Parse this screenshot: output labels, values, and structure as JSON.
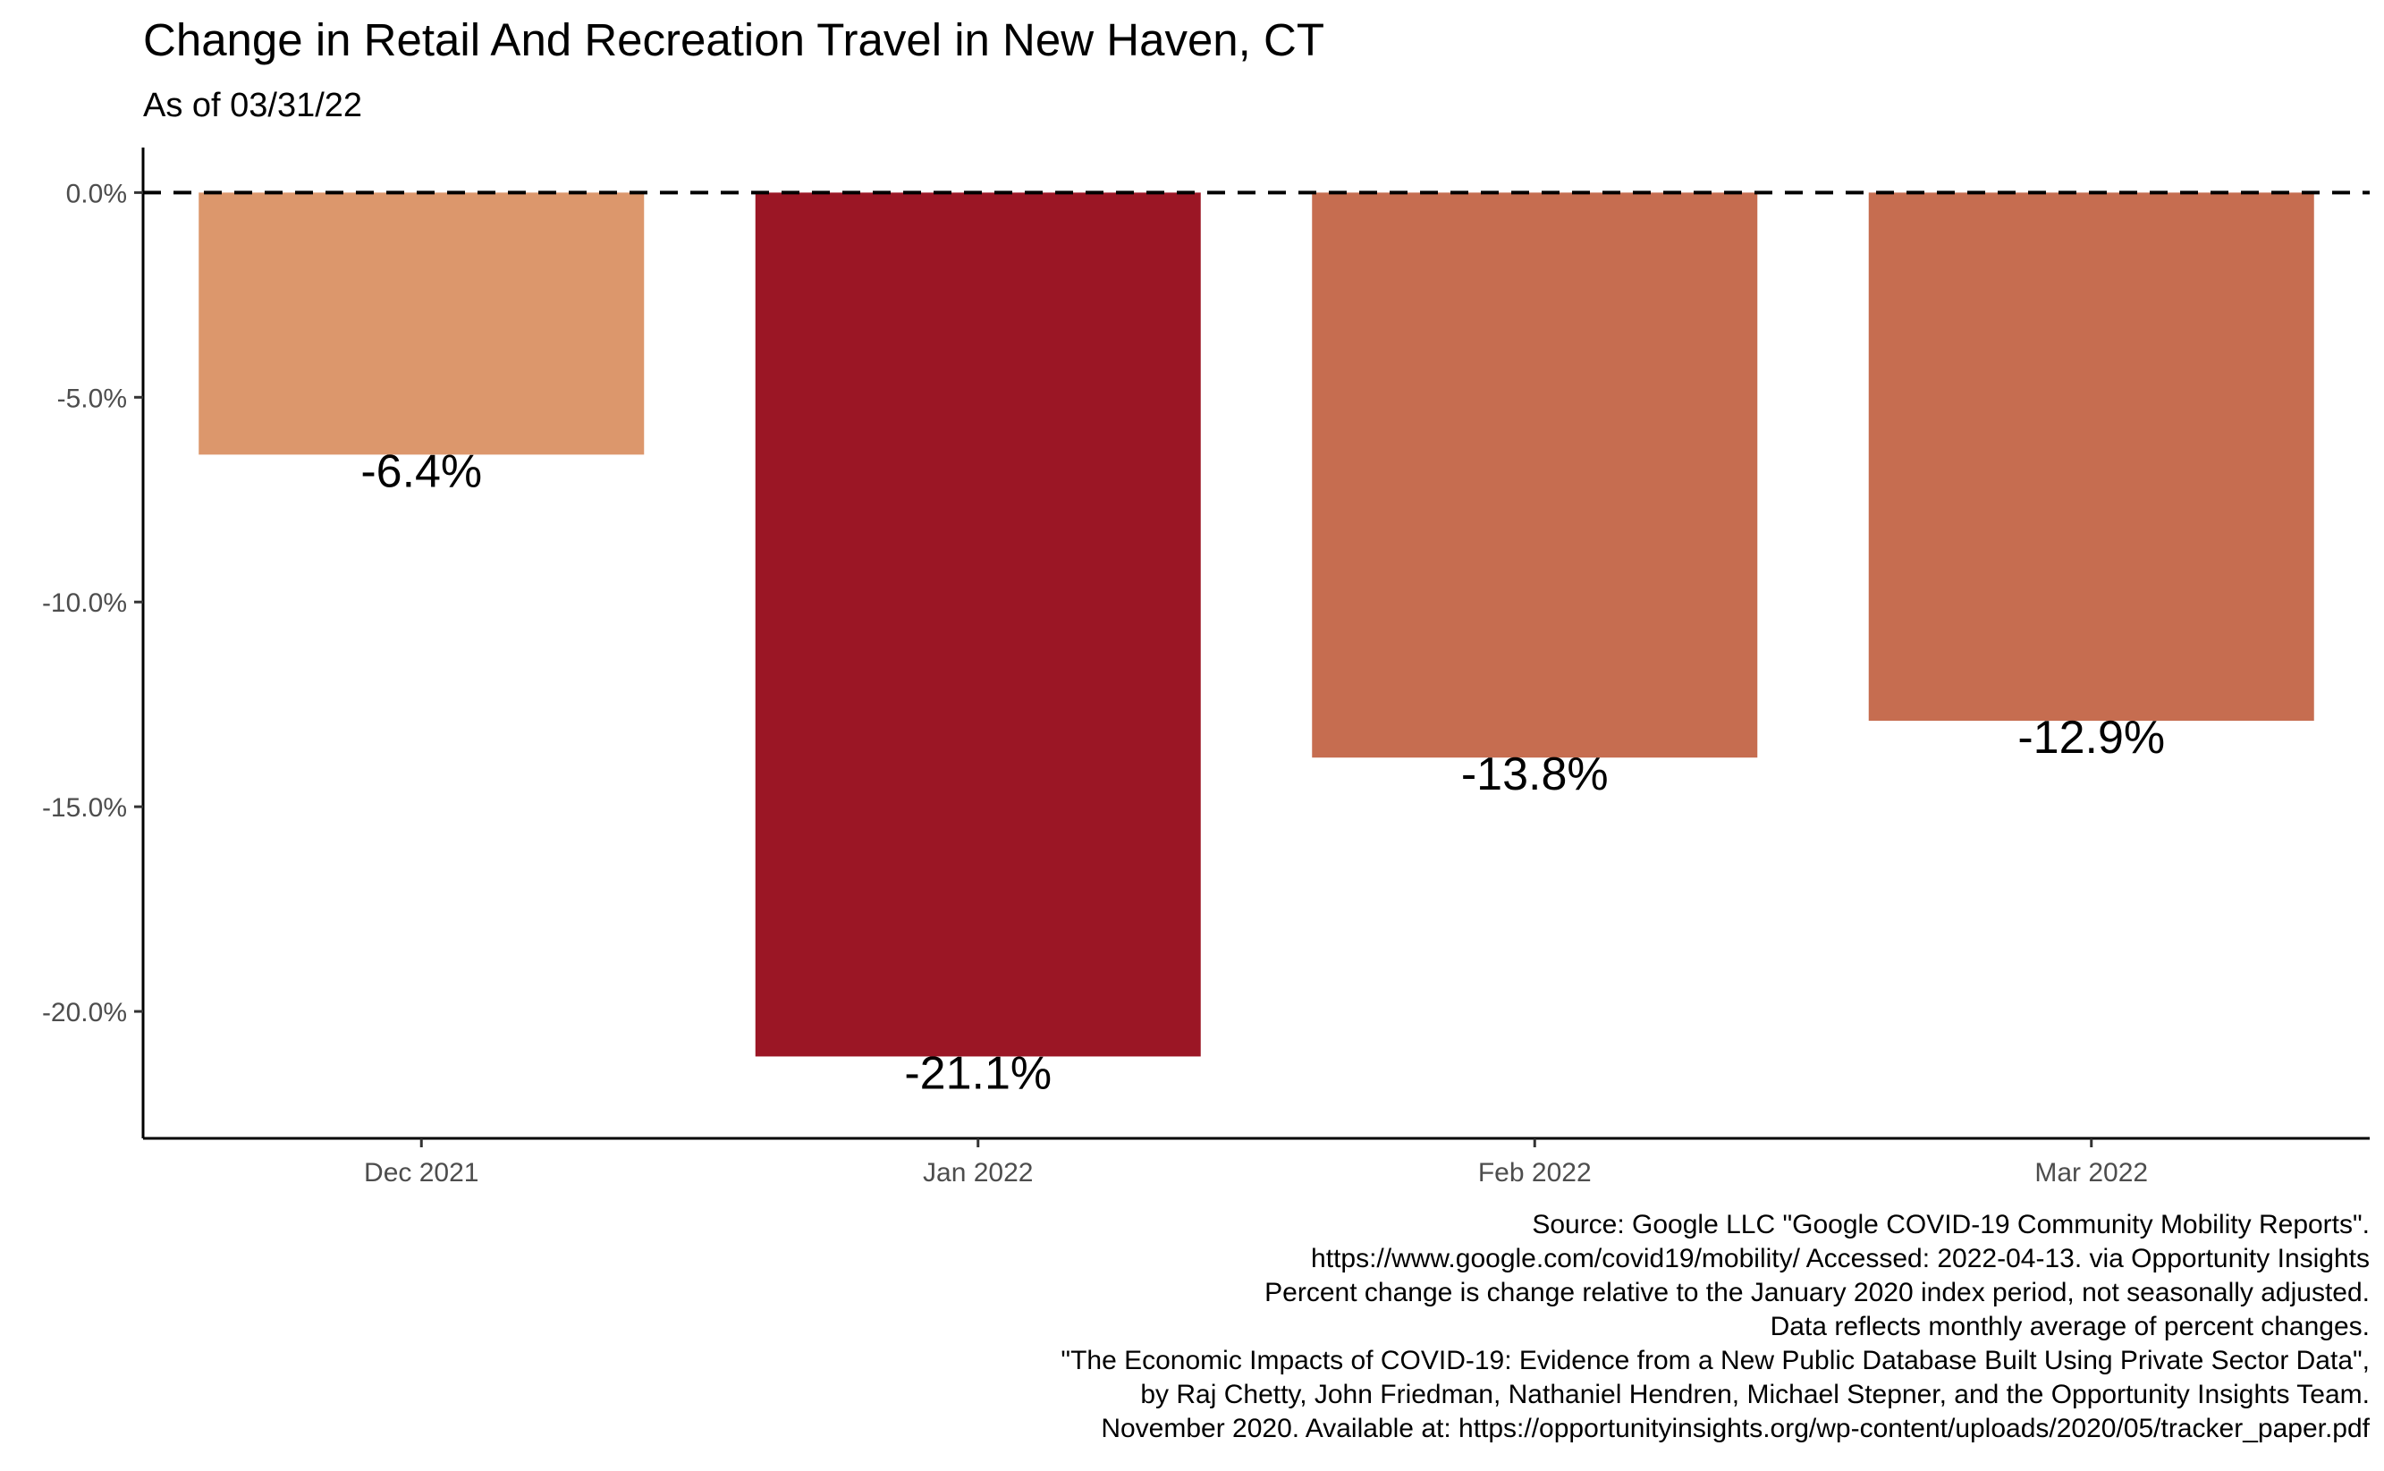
{
  "chart_data": {
    "type": "bar",
    "title": "Change in Retail And Recreation Travel in New Haven, CT",
    "subtitle": "As of 03/31/22",
    "xlabel": "",
    "ylabel": "",
    "categories": [
      "Dec 2021",
      "Jan 2022",
      "Feb 2022",
      "Mar 2022"
    ],
    "values": [
      -6.4,
      -21.1,
      -13.8,
      -12.9
    ],
    "data_labels": [
      "-6.4%",
      "-21.1%",
      "-13.8%",
      "-12.9%"
    ],
    "colors": [
      "#dc976c",
      "#9b1625",
      "#c66d50",
      "#c66d50"
    ],
    "ylim": [
      -23.1,
      1.1
    ],
    "y_ticks": [
      0,
      -5,
      -10,
      -15,
      -20
    ],
    "y_tick_labels": [
      "0.0%",
      "-5.0%",
      "-10.0%",
      "-15.0%",
      "-20.0%"
    ],
    "reference_line": {
      "value": 0,
      "style": "dashed"
    },
    "grid": false,
    "legend": "none",
    "caption": [
      "Source: Google LLC \"Google COVID-19 Community Mobility Reports\".",
      "https://www.google.com/covid19/mobility/ Accessed: 2022-04-13. via Opportunity Insights",
      "Percent change is change relative to the January 2020 index period, not seasonally adjusted.",
      "Data reflects monthly average of percent changes.",
      "\"The Economic Impacts of COVID-19: Evidence from a New Public Database Built Using Private Sector Data\",",
      "by Raj Chetty, John Friedman, Nathaniel Hendren, Michael Stepner, and the Opportunity Insights Team.",
      "November 2020. Available at: https://opportunityinsights.org/wp-content/uploads/2020/05/tracker_paper.pdf"
    ]
  }
}
